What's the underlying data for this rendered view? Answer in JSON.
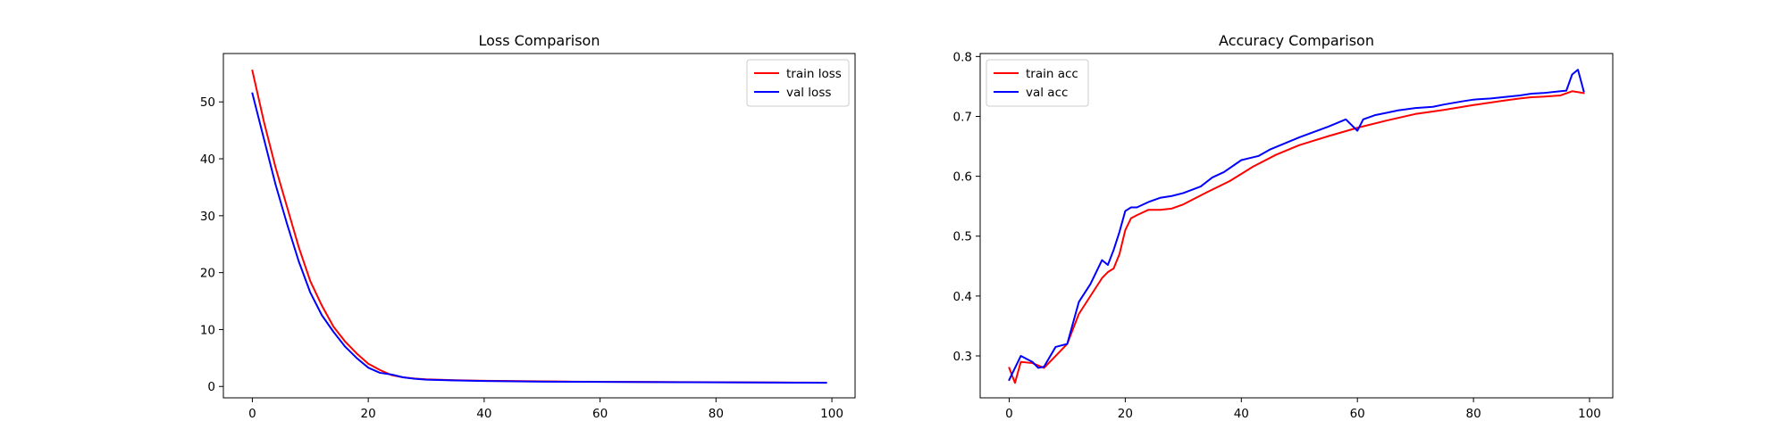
{
  "chart_data": [
    {
      "type": "line",
      "title": "Loss Comparison",
      "xlabel": "",
      "ylabel": "",
      "xlim": [
        -5,
        104
      ],
      "ylim": [
        -2,
        58.5
      ],
      "xticks": [
        0,
        20,
        40,
        60,
        80,
        100
      ],
      "yticks": [
        0,
        10,
        20,
        30,
        40,
        50
      ],
      "tick_labels_x": [
        "0",
        "20",
        "40",
        "60",
        "80",
        "100"
      ],
      "tick_labels_y": [
        "0",
        "10",
        "20",
        "30",
        "40",
        "50"
      ],
      "legend_position": "upper right",
      "grid": false,
      "series": [
        {
          "name": "train loss",
          "color": "#ff0000",
          "x": [
            0,
            2,
            4,
            6,
            8,
            10,
            12,
            14,
            16,
            18,
            20,
            22,
            24,
            26,
            28,
            30,
            35,
            40,
            45,
            50,
            55,
            60,
            65,
            70,
            75,
            80,
            85,
            90,
            95,
            99
          ],
          "y": [
            55.5,
            46.5,
            38.5,
            31.5,
            24.5,
            18.5,
            14.2,
            10.5,
            7.9,
            5.8,
            4.0,
            2.9,
            2.0,
            1.6,
            1.4,
            1.25,
            1.1,
            1.0,
            0.95,
            0.9,
            0.85,
            0.82,
            0.8,
            0.78,
            0.76,
            0.74,
            0.72,
            0.7,
            0.68,
            0.66
          ]
        },
        {
          "name": "val loss",
          "color": "#0000ff",
          "x": [
            0,
            2,
            4,
            6,
            8,
            10,
            12,
            14,
            16,
            18,
            20,
            22,
            24,
            26,
            28,
            30,
            35,
            40,
            45,
            50,
            55,
            60,
            65,
            70,
            75,
            80,
            85,
            90,
            95,
            99
          ],
          "y": [
            51.5,
            43.5,
            35.5,
            28.5,
            22.0,
            16.5,
            12.5,
            9.6,
            7.0,
            5.0,
            3.3,
            2.4,
            2.1,
            1.6,
            1.35,
            1.2,
            1.05,
            0.95,
            0.9,
            0.85,
            0.82,
            0.8,
            0.78,
            0.76,
            0.74,
            0.72,
            0.7,
            0.68,
            0.66,
            0.65
          ]
        }
      ]
    },
    {
      "type": "line",
      "title": "Accuracy Comparison",
      "xlabel": "",
      "ylabel": "",
      "xlim": [
        -5,
        104
      ],
      "ylim": [
        0.23,
        0.805
      ],
      "xticks": [
        0,
        20,
        40,
        60,
        80,
        100
      ],
      "yticks": [
        0.3,
        0.4,
        0.5,
        0.6,
        0.7,
        0.8
      ],
      "tick_labels_x": [
        "0",
        "20",
        "40",
        "60",
        "80",
        "100"
      ],
      "tick_labels_y": [
        "0.3",
        "0.4",
        "0.5",
        "0.6",
        "0.7",
        "0.8"
      ],
      "legend_position": "upper left",
      "grid": false,
      "series": [
        {
          "name": "train acc",
          "color": "#ff0000",
          "x": [
            0,
            1,
            2,
            4,
            6,
            8,
            10,
            12,
            14,
            16,
            17,
            18,
            19,
            20,
            21,
            22,
            24,
            26,
            28,
            30,
            34,
            38,
            42,
            46,
            50,
            55,
            60,
            65,
            70,
            75,
            80,
            85,
            88,
            90,
            92,
            95,
            97,
            99
          ],
          "y": [
            0.28,
            0.255,
            0.29,
            0.288,
            0.28,
            0.3,
            0.32,
            0.37,
            0.4,
            0.43,
            0.44,
            0.446,
            0.47,
            0.51,
            0.53,
            0.535,
            0.544,
            0.544,
            0.546,
            0.553,
            0.573,
            0.592,
            0.616,
            0.636,
            0.652,
            0.667,
            0.681,
            0.693,
            0.704,
            0.711,
            0.719,
            0.726,
            0.73,
            0.732,
            0.733,
            0.735,
            0.742,
            0.739
          ]
        },
        {
          "name": "val acc",
          "color": "#0000ff",
          "x": [
            0,
            2,
            4,
            5,
            6,
            8,
            10,
            12,
            14,
            16,
            17,
            18,
            19,
            20,
            21,
            22,
            24,
            26,
            28,
            30,
            33,
            35,
            37,
            40,
            43,
            45,
            50,
            55,
            58,
            60,
            61,
            63,
            65,
            67,
            70,
            73,
            75,
            78,
            80,
            83,
            85,
            88,
            90,
            92,
            95,
            96,
            97,
            98,
            99
          ],
          "y": [
            0.26,
            0.3,
            0.29,
            0.28,
            0.282,
            0.315,
            0.32,
            0.39,
            0.42,
            0.46,
            0.452,
            0.477,
            0.507,
            0.542,
            0.548,
            0.548,
            0.557,
            0.564,
            0.567,
            0.572,
            0.583,
            0.598,
            0.607,
            0.627,
            0.634,
            0.645,
            0.665,
            0.683,
            0.695,
            0.676,
            0.695,
            0.702,
            0.706,
            0.71,
            0.714,
            0.716,
            0.72,
            0.725,
            0.728,
            0.73,
            0.732,
            0.735,
            0.738,
            0.739,
            0.742,
            0.743,
            0.77,
            0.778,
            0.742
          ]
        }
      ]
    }
  ]
}
